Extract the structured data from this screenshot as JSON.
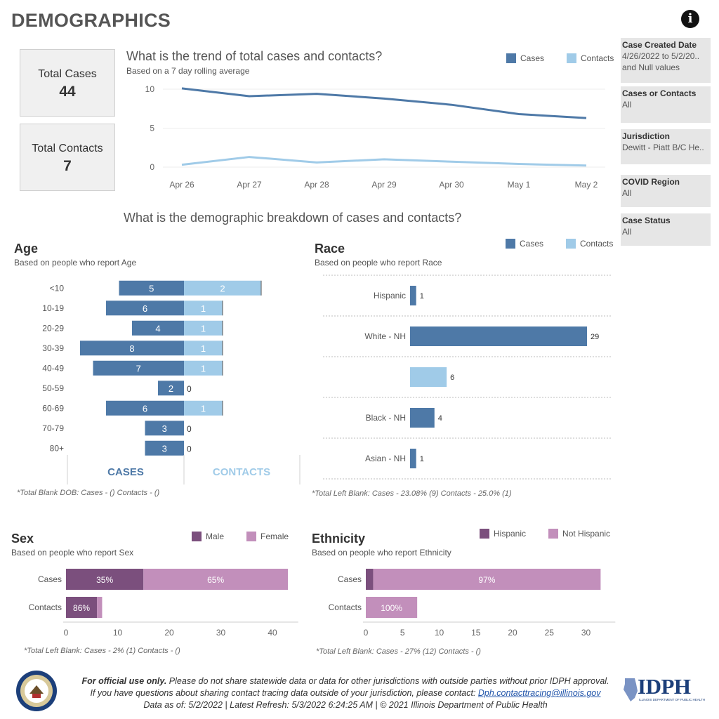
{
  "header": {
    "title": "DEMOGRAPHICS"
  },
  "kpis": {
    "total_cases_label": "Total Cases",
    "total_cases_value": "44",
    "total_contacts_label": "Total Contacts",
    "total_contacts_value": "7"
  },
  "filters": [
    {
      "label": "Case Created Date",
      "value": "4/26/2022 to 5/2/20..",
      "value2": "and Null values"
    },
    {
      "label": "Cases or Contacts",
      "value": "All"
    },
    {
      "label": "Jurisdiction",
      "value": "Dewitt - Piatt B/C He.."
    },
    {
      "label": "COVID Region",
      "value": "All"
    },
    {
      "label": "Case Status",
      "value": "All"
    }
  ],
  "colors": {
    "cases": "#4e79a7",
    "contacts": "#a0cbe8",
    "male": "#7b4f7d",
    "female": "#c28fbb",
    "hispanic": "#7b4f7d",
    "not_hispanic": "#c28fbb"
  },
  "trend": {
    "title": "What is the trend of total cases and contacts?",
    "subtitle": "Based on a 7 day rolling average",
    "legend_cases": "Cases",
    "legend_contacts": "Contacts"
  },
  "breakdown_title": "What is the demographic breakdown of cases and contacts?",
  "age": {
    "title": "Age",
    "subtitle": "Based on people who report Age",
    "cases_label": "CASES",
    "contacts_label": "CONTACTS",
    "note": "*Total Blank DOB: Cases -  () Contacts -  ()"
  },
  "race": {
    "title": "Race",
    "subtitle": "Based on people who report Race",
    "legend_cases": "Cases",
    "legend_contacts": "Contacts",
    "note": "*Total Left Blank: Cases - 23.08% (9) Contacts - 25.0% (1)"
  },
  "sex": {
    "title": "Sex",
    "subtitle": "Based on people who report Sex",
    "legend_male": "Male",
    "legend_female": "Female",
    "note": "*Total Left Blank: Cases - 2% (1) Contacts -  ()"
  },
  "ethnicity": {
    "title": "Ethnicity",
    "subtitle": "Based on people who report Ethnicity",
    "legend_hispanic": "Hispanic",
    "legend_not_hispanic": "Not Hispanic",
    "note": "*Total Left Blank: Cases - 27% (12) Contacts -  ()"
  },
  "footer": {
    "line1_bold": "For official use only.",
    "line1_rest": " Please do not share statewide data or data for other jurisdictions with outside parties without prior IDPH approval.",
    "line2": "If you have questions about sharing contact tracing data outside of your jurisdiction, please contact: ",
    "email": "Dph.contacttracing@illinois.gov",
    "line3": "Data as of: 5/2/2022  |  Latest Refresh: 5/3/2022 6:24:25 AM  |  © 2021 Illinois Department of Public Health",
    "logo_text": "IDPH",
    "logo_subtext": "ILLINOIS DEPARTMENT OF PUBLIC HEALTH"
  },
  "chart_data": [
    {
      "type": "line",
      "title": "What is the trend of total cases and contacts?",
      "x": [
        "Apr 26",
        "Apr 27",
        "Apr 28",
        "Apr 29",
        "Apr 30",
        "May 1",
        "May 2"
      ],
      "yticks": [
        0,
        5,
        10
      ],
      "ylim": [
        0,
        10.5
      ],
      "series": [
        {
          "name": "Cases",
          "values": [
            10.1,
            9.1,
            9.4,
            8.8,
            8.0,
            6.8,
            6.3
          ]
        },
        {
          "name": "Contacts",
          "values": [
            0.3,
            1.3,
            0.6,
            1.0,
            0.7,
            0.4,
            0.2
          ]
        }
      ]
    },
    {
      "type": "bar",
      "title": "Age",
      "categories": [
        "<10",
        "10-19",
        "20-29",
        "30-39",
        "40-49",
        "50-59",
        "60-69",
        "70-79",
        "80+"
      ],
      "series": [
        {
          "name": "CASES",
          "values": [
            5,
            6,
            4,
            8,
            7,
            2,
            6,
            3,
            3
          ]
        },
        {
          "name": "CONTACTS",
          "values": [
            2,
            1,
            1,
            1,
            1,
            0,
            1,
            0,
            0
          ]
        }
      ]
    },
    {
      "type": "bar",
      "title": "Race",
      "rows": [
        {
          "label": "Hispanic",
          "series": "Cases",
          "value": 1
        },
        {
          "label": "White - NH",
          "series": "Cases",
          "value": 29
        },
        {
          "label": "",
          "series": "Contacts",
          "value": 6
        },
        {
          "label": "Black - NH",
          "series": "Cases",
          "value": 4
        },
        {
          "label": "Asian - NH",
          "series": "Cases",
          "value": 1
        }
      ],
      "xlim": [
        0,
        29
      ]
    },
    {
      "type": "bar",
      "title": "Sex",
      "stacked": true,
      "categories": [
        "Cases",
        "Contacts"
      ],
      "xticks": [
        0,
        10,
        20,
        30,
        40
      ],
      "xlim": [
        0,
        45
      ],
      "series": [
        {
          "name": "Male",
          "values": [
            15,
            6
          ],
          "labels": [
            "35%",
            "86%"
          ]
        },
        {
          "name": "Female",
          "values": [
            28,
            1
          ],
          "labels": [
            "65%",
            ""
          ]
        }
      ]
    },
    {
      "type": "bar",
      "title": "Ethnicity",
      "stacked": true,
      "categories": [
        "Cases",
        "Contacts"
      ],
      "xticks": [
        0,
        5,
        10,
        15,
        20,
        25,
        30
      ],
      "xlim": [
        0,
        34
      ],
      "series": [
        {
          "name": "Hispanic",
          "values": [
            1,
            0
          ],
          "labels": [
            "",
            ""
          ]
        },
        {
          "name": "Not Hispanic",
          "values": [
            31,
            7
          ],
          "labels": [
            "97%",
            "100%"
          ]
        }
      ]
    }
  ]
}
